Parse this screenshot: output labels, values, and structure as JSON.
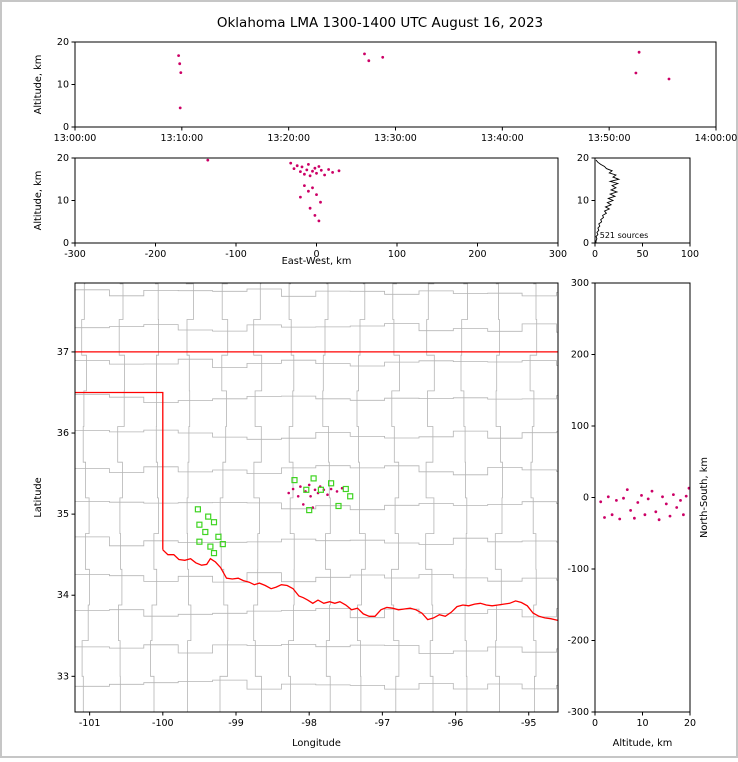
{
  "title": "Oklahoma LMA 1300-1400 UTC August 16, 2023",
  "colors": {
    "source_point": "#cc0066",
    "station_marker": "#3fd422",
    "state_border": "#ff0000",
    "county_line": "#b5b5b5",
    "histogram_line": "#000000",
    "axis": "#000000",
    "background": "#ffffff",
    "frame": "#c6c6c6"
  },
  "chart_data": [
    {
      "id": "time-altitude",
      "type": "scatter",
      "xlabel": "",
      "ylabel": "Altitude, km",
      "xlim": [
        0,
        60
      ],
      "ylim": [
        0,
        20
      ],
      "xticks": [
        0,
        10,
        20,
        30,
        40,
        50,
        60
      ],
      "xtick_labels": [
        "13:00:00",
        "13:10:00",
        "13:20:00",
        "13:30:00",
        "13:40:00",
        "13:50:00",
        "14:00:00"
      ],
      "yticks": [
        0,
        10,
        20
      ],
      "ytick_labels": [
        "0",
        "10",
        "20"
      ],
      "points": [
        [
          9.7,
          16.8
        ],
        [
          9.8,
          14.9
        ],
        [
          9.9,
          12.8
        ],
        [
          9.85,
          4.5
        ],
        [
          27.1,
          17.2
        ],
        [
          27.5,
          15.6
        ],
        [
          28.8,
          16.4
        ],
        [
          52.8,
          17.6
        ],
        [
          52.5,
          12.7
        ],
        [
          55.6,
          11.3
        ]
      ]
    },
    {
      "id": "ew-altitude",
      "type": "scatter",
      "xlabel": "East-West, km",
      "ylabel": "Altitude, km",
      "xlim": [
        -300,
        300
      ],
      "ylim": [
        0,
        20
      ],
      "xticks": [
        -300,
        -200,
        -100,
        0,
        100,
        200,
        300
      ],
      "xtick_labels": [
        "-300",
        "-200",
        "-100",
        "0",
        "100",
        "200",
        "300"
      ],
      "yticks": [
        0,
        10,
        20
      ],
      "ytick_labels": [
        "0",
        "10",
        "20"
      ],
      "points": [
        [
          -135,
          19.5
        ],
        [
          -32,
          18.8
        ],
        [
          -28,
          17.5
        ],
        [
          -24,
          18.2
        ],
        [
          -20,
          16.8
        ],
        [
          -18,
          17.9
        ],
        [
          -15,
          16.2
        ],
        [
          -12,
          17.2
        ],
        [
          -10,
          18.5
        ],
        [
          -8,
          15.8
        ],
        [
          -5,
          16.9
        ],
        [
          -2,
          17.6
        ],
        [
          0,
          16.4
        ],
        [
          3,
          18.0
        ],
        [
          6,
          17.1
        ],
        [
          10,
          16.0
        ],
        [
          15,
          17.3
        ],
        [
          20,
          16.6
        ],
        [
          28,
          17.0
        ],
        [
          -15,
          13.5
        ],
        [
          -10,
          12.2
        ],
        [
          -5,
          13.0
        ],
        [
          0,
          11.4
        ],
        [
          -20,
          10.8
        ],
        [
          5,
          9.6
        ],
        [
          -8,
          8.2
        ],
        [
          -2,
          6.5
        ],
        [
          3,
          5.2
        ]
      ]
    },
    {
      "id": "altitude-histogram",
      "type": "line",
      "xlabel": "",
      "ylabel": "",
      "xlim": [
        0,
        100
      ],
      "ylim": [
        0,
        20
      ],
      "xticks": [
        0,
        50,
        100
      ],
      "xtick_labels": [
        "0",
        "50",
        "100"
      ],
      "yticks": [
        0,
        10,
        20
      ],
      "ytick_labels": [
        "0",
        "10",
        "20"
      ],
      "annotation": "521 sources",
      "annotation_xy": [
        5,
        1.2
      ],
      "profile_alts": [
        0,
        0.5,
        1,
        1.5,
        2,
        2.5,
        3,
        3.5,
        4,
        4.5,
        5,
        5.5,
        6,
        6.5,
        7,
        7.5,
        8,
        8.5,
        9,
        9.5,
        10,
        10.5,
        11,
        11.5,
        12,
        12.5,
        13,
        13.5,
        14,
        14.5,
        15,
        15.5,
        16,
        16.5,
        17,
        17.5,
        18,
        18.5,
        19,
        19.5
      ],
      "profile_counts": [
        1,
        1,
        2,
        1,
        3,
        2,
        4,
        3,
        5,
        4,
        7,
        6,
        9,
        8,
        12,
        10,
        15,
        11,
        17,
        13,
        19,
        14,
        21,
        16,
        23,
        17,
        22,
        18,
        24,
        16,
        25,
        19,
        22,
        15,
        18,
        12,
        10,
        6,
        3,
        1
      ]
    },
    {
      "id": "plan-map",
      "type": "map-scatter",
      "xlabel": "Longitude",
      "ylabel": "Latitude",
      "xlim": [
        -101.2,
        -94.6
      ],
      "ylim": [
        32.56,
        37.85
      ],
      "xticks": [
        -101,
        -100,
        -99,
        -98,
        -97,
        -96,
        -95
      ],
      "xtick_labels": [
        "-101",
        "-100",
        "-99",
        "-98",
        "-97",
        "-96",
        "-95"
      ],
      "yticks": [
        33,
        34,
        35,
        36,
        37
      ],
      "ytick_labels": [
        "33",
        "34",
        "35",
        "36",
        "37"
      ],
      "county_grid": {
        "lon_start": -101.05,
        "lon_step": 0.47,
        "lat_start": 32.9,
        "lat_step": 0.44,
        "jitter": 0.06
      },
      "state_lines": [
        [
          [
            -101.2,
            37.0
          ],
          [
            -94.6,
            37.0
          ]
        ],
        [
          [
            -101.2,
            36.5
          ],
          [
            -100.0,
            36.5
          ],
          [
            -100.0,
            34.56
          ]
        ],
        [
          [
            -100.0,
            34.56
          ],
          [
            -99.93,
            34.5
          ],
          [
            -99.85,
            34.5
          ],
          [
            -99.78,
            34.44
          ],
          [
            -99.7,
            34.43
          ],
          [
            -99.62,
            34.45
          ],
          [
            -99.55,
            34.4
          ],
          [
            -99.47,
            34.37
          ],
          [
            -99.4,
            34.38
          ],
          [
            -99.35,
            34.45
          ],
          [
            -99.28,
            34.41
          ],
          [
            -99.21,
            34.34
          ],
          [
            -99.13,
            34.21
          ],
          [
            -99.05,
            34.2
          ],
          [
            -98.97,
            34.21
          ],
          [
            -98.9,
            34.18
          ],
          [
            -98.82,
            34.16
          ],
          [
            -98.75,
            34.13
          ],
          [
            -98.68,
            34.15
          ],
          [
            -98.6,
            34.12
          ],
          [
            -98.52,
            34.08
          ],
          [
            -98.45,
            34.1
          ],
          [
            -98.38,
            34.13
          ],
          [
            -98.3,
            34.12
          ],
          [
            -98.22,
            34.08
          ],
          [
            -98.14,
            33.99
          ],
          [
            -98.08,
            33.97
          ],
          [
            -98.02,
            33.94
          ],
          [
            -97.95,
            33.9
          ],
          [
            -97.88,
            33.94
          ],
          [
            -97.8,
            33.9
          ],
          [
            -97.72,
            33.92
          ],
          [
            -97.65,
            33.9
          ],
          [
            -97.58,
            33.92
          ],
          [
            -97.5,
            33.88
          ],
          [
            -97.42,
            33.82
          ],
          [
            -97.34,
            33.84
          ],
          [
            -97.26,
            33.77
          ],
          [
            -97.18,
            33.74
          ],
          [
            -97.1,
            33.74
          ],
          [
            -97.02,
            33.82
          ],
          [
            -96.94,
            33.85
          ],
          [
            -96.86,
            33.84
          ],
          [
            -96.78,
            33.82
          ],
          [
            -96.7,
            33.83
          ],
          [
            -96.62,
            33.84
          ],
          [
            -96.54,
            33.82
          ],
          [
            -96.46,
            33.78
          ],
          [
            -96.38,
            33.7
          ],
          [
            -96.3,
            33.72
          ],
          [
            -96.22,
            33.76
          ],
          [
            -96.14,
            33.74
          ],
          [
            -96.06,
            33.79
          ],
          [
            -95.98,
            33.86
          ],
          [
            -95.9,
            33.88
          ],
          [
            -95.82,
            33.87
          ],
          [
            -95.74,
            33.89
          ],
          [
            -95.66,
            33.9
          ],
          [
            -95.58,
            33.88
          ],
          [
            -95.5,
            33.87
          ],
          [
            -95.42,
            33.88
          ],
          [
            -95.34,
            33.89
          ],
          [
            -95.26,
            33.9
          ],
          [
            -95.18,
            33.93
          ],
          [
            -95.1,
            33.91
          ],
          [
            -95.02,
            33.87
          ],
          [
            -94.94,
            33.78
          ],
          [
            -94.86,
            33.74
          ],
          [
            -94.78,
            33.72
          ],
          [
            -94.7,
            33.71
          ],
          [
            -94.6,
            33.69
          ]
        ]
      ],
      "sources": [
        [
          -98.28,
          35.26
        ],
        [
          -98.22,
          35.31
        ],
        [
          -98.15,
          35.22
        ],
        [
          -98.12,
          35.34
        ],
        [
          -98.05,
          35.28
        ],
        [
          -98.0,
          35.36
        ],
        [
          -97.98,
          35.22
        ],
        [
          -97.92,
          35.3
        ],
        [
          -97.88,
          35.26
        ],
        [
          -97.85,
          35.34
        ],
        [
          -97.8,
          35.3
        ],
        [
          -97.75,
          35.24
        ],
        [
          -97.7,
          35.31
        ],
        [
          -97.62,
          35.28
        ],
        [
          -97.55,
          35.32
        ],
        [
          -98.08,
          35.12
        ],
        [
          -97.95,
          35.08
        ]
      ],
      "stations": [
        [
          -99.52,
          35.06
        ],
        [
          -99.38,
          34.97
        ],
        [
          -99.5,
          34.87
        ],
        [
          -99.3,
          34.9
        ],
        [
          -99.42,
          34.78
        ],
        [
          -99.24,
          34.72
        ],
        [
          -99.5,
          34.66
        ],
        [
          -99.35,
          34.6
        ],
        [
          -99.18,
          34.63
        ],
        [
          -99.3,
          34.52
        ],
        [
          -98.2,
          35.42
        ],
        [
          -98.04,
          35.3
        ],
        [
          -97.94,
          35.44
        ],
        [
          -97.84,
          35.3
        ],
        [
          -97.7,
          35.38
        ],
        [
          -97.5,
          35.31
        ],
        [
          -97.44,
          35.22
        ],
        [
          -98.0,
          35.05
        ],
        [
          -97.6,
          35.1
        ]
      ]
    },
    {
      "id": "ns-altitude",
      "type": "scatter",
      "xlabel": "Altitude, km",
      "ylabel": "North-South, km",
      "ylabel_side": "right",
      "xlim": [
        0,
        20
      ],
      "ylim": [
        -300,
        300
      ],
      "xticks": [
        0,
        10,
        20
      ],
      "xtick_labels": [
        "0",
        "10",
        "20"
      ],
      "yticks": [
        -300,
        -200,
        -100,
        0,
        100,
        200,
        300
      ],
      "ytick_labels": [
        "-300",
        "-200",
        "-100",
        "0",
        "100",
        "200",
        "300"
      ],
      "points": [
        [
          1.2,
          -6
        ],
        [
          2.0,
          -28
        ],
        [
          2.8,
          1
        ],
        [
          3.6,
          -24
        ],
        [
          4.5,
          -4
        ],
        [
          5.2,
          -30
        ],
        [
          6.0,
          -1
        ],
        [
          6.8,
          11
        ],
        [
          7.5,
          -18
        ],
        [
          8.3,
          -29
        ],
        [
          9.0,
          -7
        ],
        [
          9.8,
          3
        ],
        [
          10.5,
          -24
        ],
        [
          11.2,
          -2
        ],
        [
          12.0,
          9
        ],
        [
          12.8,
          -20
        ],
        [
          13.5,
          -31
        ],
        [
          14.2,
          1
        ],
        [
          15.0,
          -9
        ],
        [
          15.8,
          -26
        ],
        [
          16.5,
          4
        ],
        [
          17.2,
          -14
        ],
        [
          18.0,
          -4
        ],
        [
          18.6,
          -24
        ],
        [
          19.2,
          2
        ],
        [
          19.8,
          13
        ]
      ]
    }
  ]
}
